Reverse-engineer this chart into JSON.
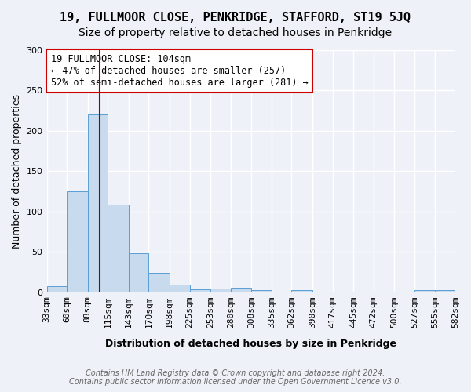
{
  "title1": "19, FULLMOOR CLOSE, PENKRIDGE, STAFFORD, ST19 5JQ",
  "title2": "Size of property relative to detached houses in Penkridge",
  "xlabel": "Distribution of detached houses by size in Penkridge",
  "ylabel": "Number of detached properties",
  "footer1": "Contains HM Land Registry data © Crown copyright and database right 2024.",
  "footer2": "Contains public sector information licensed under the Open Government Licence v3.0.",
  "annotation_line1": "19 FULLMOOR CLOSE: 104sqm",
  "annotation_line2": "← 47% of detached houses are smaller (257)",
  "annotation_line3": "52% of semi-detached houses are larger (281) →",
  "property_size": 104,
  "bin_edges": [
    33,
    60,
    88,
    115,
    143,
    170,
    198,
    225,
    253,
    280,
    308,
    335,
    362,
    390,
    417,
    445,
    472,
    500,
    527,
    555,
    582
  ],
  "bin_labels": [
    "33sqm",
    "60sqm",
    "88sqm",
    "115sqm",
    "143sqm",
    "170sqm",
    "198sqm",
    "225sqm",
    "253sqm",
    "280sqm",
    "308sqm",
    "335sqm",
    "362sqm",
    "390sqm",
    "417sqm",
    "445sqm",
    "472sqm",
    "500sqm",
    "527sqm",
    "555sqm",
    "582sqm"
  ],
  "bar_heights": [
    8,
    125,
    220,
    109,
    48,
    24,
    9,
    4,
    5,
    6,
    3,
    0,
    3,
    0,
    0,
    0,
    0,
    0,
    3,
    3
  ],
  "bar_color": "#c8daee",
  "bar_edge_color": "#5a9fd4",
  "vline_color": "#8b0000",
  "vline_x": 104,
  "ylim": [
    0,
    300
  ],
  "yticks": [
    0,
    50,
    100,
    150,
    200,
    250,
    300
  ],
  "bg_color": "#eef2f8",
  "annotation_box_color": "#ffffff",
  "annotation_box_edge": "#cc0000",
  "grid_color": "#ffffff",
  "title_fontsize": 11,
  "subtitle_fontsize": 10,
  "axis_label_fontsize": 9,
  "tick_fontsize": 8,
  "annotation_fontsize": 8.5,
  "footer_fontsize": 7
}
